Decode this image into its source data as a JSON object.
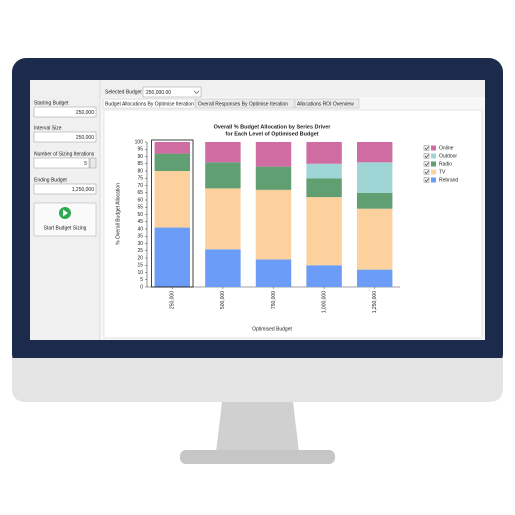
{
  "app": {
    "fields": [
      {
        "label": "Starting Budget",
        "value": "250,000"
      },
      {
        "label": "Interval Size",
        "value": "250,000"
      },
      {
        "label": "Number of Sizing Iterations",
        "value": "5"
      },
      {
        "label": "Ending Budget",
        "value": "1,250,000"
      }
    ],
    "button": "Start Budget Sizing",
    "selected_budget_label": "Selected Budget",
    "selected_budget": "250,000.00",
    "tabs": [
      "Budget Allocations By Optimise Iteration",
      "Overall Responses By Optimise Iteration",
      "Allocations ROI Overview"
    ]
  },
  "chart_data": {
    "type": "bar",
    "stacked": true,
    "title": "Overall % Budget Allocation by Series Driver",
    "subtitle": "for Each Level of Optimised Budget",
    "x_label": "Optimised Budget",
    "y_label": "% Overall Budget Allocation",
    "categories": [
      "250,000",
      "500,000",
      "750,000",
      "1,000,000",
      "1,250,000"
    ],
    "series": [
      {
        "name": "Rebrand",
        "color": "#6b9cf7",
        "values": [
          41,
          26,
          19,
          15,
          12
        ]
      },
      {
        "name": "TV",
        "color": "#fdd19e",
        "values": [
          39,
          42,
          48,
          47,
          42
        ]
      },
      {
        "name": "Radio",
        "color": "#609f72",
        "values": [
          12,
          18,
          16,
          13,
          11
        ]
      },
      {
        "name": "Outdoor",
        "color": "#9fd5d5",
        "values": [
          0,
          0,
          0,
          10,
          21
        ]
      },
      {
        "name": "Online",
        "color": "#cf6ca2",
        "values": [
          8,
          14,
          17,
          15,
          14
        ]
      }
    ],
    "ylim": [
      0,
      100
    ],
    "yticks": [
      0,
      5,
      10,
      15,
      20,
      25,
      30,
      35,
      40,
      45,
      50,
      55,
      60,
      65,
      70,
      75,
      80,
      85,
      90,
      95,
      100
    ],
    "grid": false,
    "legend": "right"
  }
}
